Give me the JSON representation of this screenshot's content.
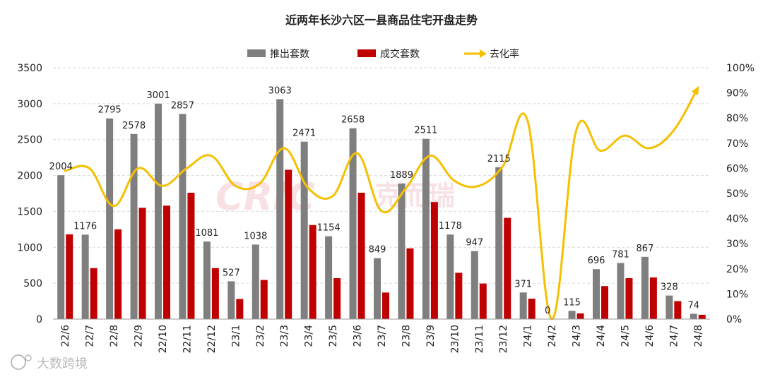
{
  "chart_data": {
    "type": "bar",
    "title": "近两年长沙六区一县商品住宅开盘走势",
    "categories": [
      "22/6",
      "22/7",
      "22/8",
      "22/9",
      "22/10",
      "22/11",
      "22/12",
      "23/1",
      "23/2",
      "23/3",
      "23/4",
      "23/5",
      "23/6",
      "23/7",
      "23/8",
      "23/9",
      "23/10",
      "23/11",
      "23/12",
      "24/1",
      "24/2",
      "24/3",
      "24/4",
      "24/5",
      "24/6",
      "24/7",
      "24/8"
    ],
    "series": [
      {
        "name": "推出套数",
        "type": "bar",
        "color": "#7f7f7f",
        "values": [
          2004,
          1176,
          2795,
          2578,
          3001,
          2857,
          1081,
          527,
          1038,
          3063,
          2471,
          1154,
          2658,
          849,
          1889,
          2511,
          1178,
          947,
          2115,
          371,
          0,
          115,
          696,
          781,
          867,
          328,
          74
        ]
      },
      {
        "name": "成交套数",
        "type": "bar",
        "color": "#c00000",
        "values": [
          1180,
          710,
          1250,
          1550,
          1580,
          1760,
          710,
          280,
          545,
          2080,
          1310,
          570,
          1760,
          370,
          985,
          1630,
          645,
          495,
          1410,
          285,
          0,
          80,
          460,
          570,
          580,
          250,
          60
        ]
      },
      {
        "name": "去化率",
        "type": "line",
        "axis": "right",
        "color": "#f5c000",
        "values": [
          59,
          60,
          45,
          60,
          53,
          60,
          65,
          53,
          54,
          68,
          52,
          49,
          66,
          43,
          52,
          65,
          55,
          53,
          61,
          79,
          0,
          75,
          67,
          73,
          68,
          75,
          92
        ]
      }
    ],
    "y_left": {
      "min": 0,
      "max": 3500,
      "step": 500,
      "ticks": [
        "0",
        "500",
        "1000",
        "1500",
        "2000",
        "2500",
        "3000",
        "3500"
      ]
    },
    "y_right": {
      "min": 0,
      "max": 100,
      "step": 10,
      "ticks": [
        "0%",
        "10%",
        "20%",
        "30%",
        "40%",
        "50%",
        "60%",
        "70%",
        "80%",
        "90%",
        "100%"
      ]
    },
    "legend_position": "top-center",
    "grid": true
  },
  "watermark": {
    "text1": "CRIC",
    "text2": "克而瑞"
  },
  "footer": {
    "text": "大数跨境"
  }
}
